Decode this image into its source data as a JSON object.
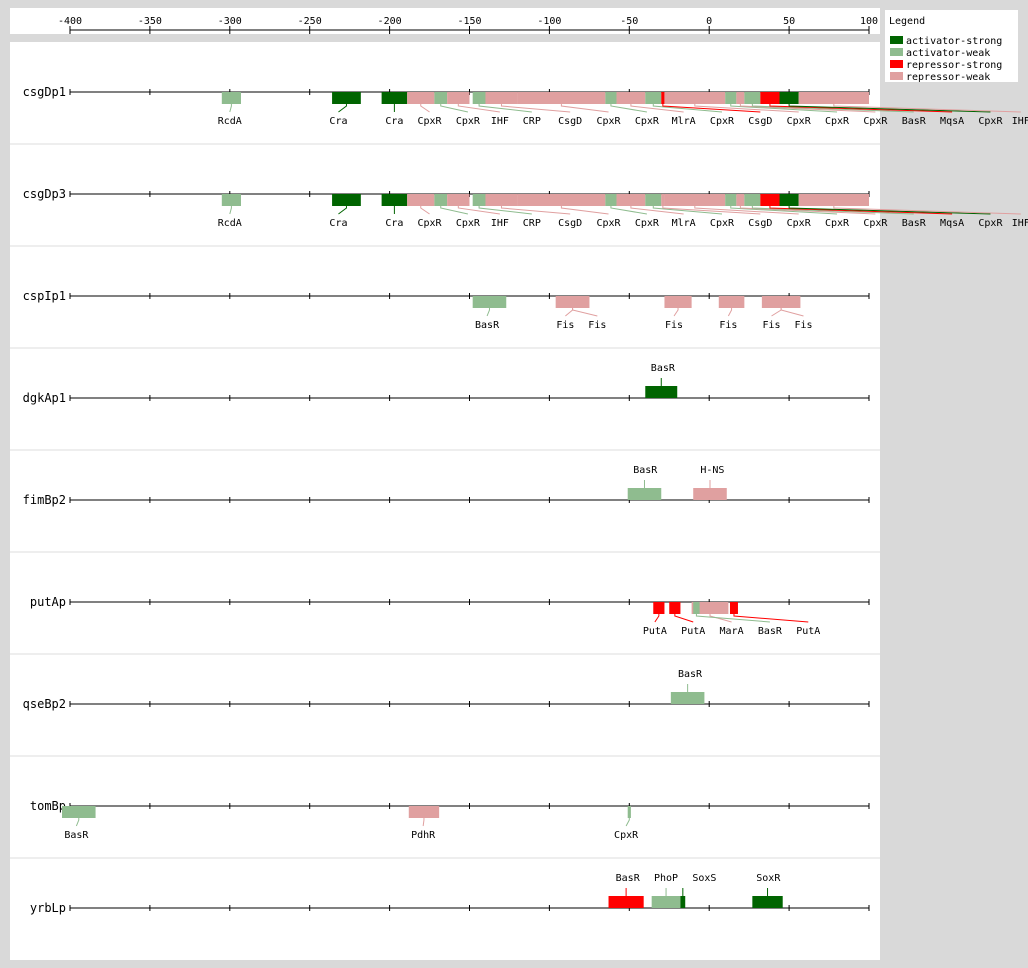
{
  "colors": {
    "activator-strong": "#006400",
    "activator-weak": "#8fbc8f",
    "repressor-strong": "#ff0000",
    "repressor-weak": "#e0a0a0",
    "background": "#d9d9d9",
    "panel": "#ffffff",
    "separator": "#dddddd"
  },
  "legend": {
    "title": "Legend",
    "items": [
      {
        "key": "activator-strong",
        "label": "activator-strong"
      },
      {
        "key": "activator-weak",
        "label": "activator-weak"
      },
      {
        "key": "repressor-strong",
        "label": "repressor-strong"
      },
      {
        "key": "repressor-weak",
        "label": "repressor-weak"
      }
    ]
  },
  "axis": {
    "min": -400,
    "max": 100,
    "ticks": [
      -400,
      -350,
      -300,
      -250,
      -200,
      -150,
      -100,
      -50,
      0,
      50,
      100
    ]
  },
  "promoters": [
    {
      "name": "csgDp1",
      "sites": [
        {
          "tf": "RcdA",
          "start": -305,
          "end": -293,
          "type": "activator-weak",
          "label_pos": "below",
          "label_x": -300
        },
        {
          "tf": "Cra",
          "start": -236,
          "end": -218,
          "type": "activator-strong",
          "label_pos": "below",
          "label_x": -232
        },
        {
          "tf": "Cra",
          "start": -205,
          "end": -189,
          "type": "activator-strong",
          "label_pos": "below",
          "label_x": -197
        },
        {
          "tf": "CpxR",
          "start": -189,
          "end": -172,
          "type": "repressor-weak",
          "label_pos": "below",
          "label_x": -175
        },
        {
          "tf": "CpxR",
          "start": -172,
          "end": -164,
          "type": "activator-weak",
          "label_pos": "below",
          "label_x": -151
        },
        {
          "tf": "IHF",
          "start": -164,
          "end": -150,
          "type": "repressor-weak",
          "label_pos": "below",
          "label_x": -131
        },
        {
          "tf": "CRP",
          "start": -148,
          "end": -140,
          "type": "activator-weak",
          "label_pos": "below",
          "label_x": -111
        },
        {
          "tf": "CsgD",
          "start": -140,
          "end": -120,
          "type": "repressor-weak",
          "label_pos": "below",
          "label_x": -87
        },
        {
          "tf": "CpxR",
          "start": -120,
          "end": -65,
          "type": "repressor-weak",
          "label_pos": "below",
          "label_x": -63
        },
        {
          "tf": "CpxR",
          "start": -65,
          "end": -58,
          "type": "activator-weak",
          "label_pos": "below",
          "label_x": -39
        },
        {
          "tf": "MlrA",
          "start": -58,
          "end": -40,
          "type": "repressor-weak",
          "label_pos": "below",
          "label_x": -16
        },
        {
          "tf": "CpxR",
          "start": -40,
          "end": -30,
          "type": "activator-weak",
          "label_pos": "below",
          "label_x": 8
        },
        {
          "tf": "CsgD",
          "start": -30,
          "end": -28,
          "type": "repressor-strong",
          "label_pos": "below",
          "label_x": 32
        },
        {
          "tf": "CpxR",
          "start": -28,
          "end": 10,
          "type": "repressor-weak",
          "label_pos": "below",
          "label_x": 56
        },
        {
          "tf": "CpxR",
          "start": 10,
          "end": 17,
          "type": "activator-weak",
          "label_pos": "below",
          "label_x": 80
        },
        {
          "tf": "CpxR",
          "start": 17,
          "end": 22,
          "type": "repressor-weak",
          "label_pos": "below",
          "label_x": 104
        },
        {
          "tf": "BasR",
          "start": 22,
          "end": 32,
          "type": "activator-weak",
          "label_pos": "below",
          "label_x": 128
        },
        {
          "tf": "MqsA",
          "start": 32,
          "end": 44,
          "type": "repressor-strong",
          "label_pos": "below",
          "label_x": 152
        },
        {
          "tf": "CpxR",
          "start": 44,
          "end": 56,
          "type": "activator-strong",
          "label_pos": "below",
          "label_x": 176
        },
        {
          "tf": "IHF",
          "start": 56,
          "end": 100,
          "type": "repressor-weak",
          "label_pos": "below",
          "label_x": 195
        }
      ]
    },
    {
      "name": "csgDp3",
      "sites": [
        {
          "tf": "RcdA",
          "start": -305,
          "end": -293,
          "type": "activator-weak",
          "label_pos": "below",
          "label_x": -300
        },
        {
          "tf": "Cra",
          "start": -236,
          "end": -218,
          "type": "activator-strong",
          "label_pos": "below",
          "label_x": -232
        },
        {
          "tf": "Cra",
          "start": -205,
          "end": -189,
          "type": "activator-strong",
          "label_pos": "below",
          "label_x": -197
        },
        {
          "tf": "CpxR",
          "start": -189,
          "end": -172,
          "type": "repressor-weak",
          "label_pos": "below",
          "label_x": -175
        },
        {
          "tf": "CpxR",
          "start": -172,
          "end": -164,
          "type": "activator-weak",
          "label_pos": "below",
          "label_x": -151
        },
        {
          "tf": "IHF",
          "start": -164,
          "end": -150,
          "type": "repressor-weak",
          "label_pos": "below",
          "label_x": -131
        },
        {
          "tf": "CRP",
          "start": -148,
          "end": -140,
          "type": "activator-weak",
          "label_pos": "below",
          "label_x": -111
        },
        {
          "tf": "CsgD",
          "start": -140,
          "end": -120,
          "type": "repressor-weak",
          "label_pos": "below",
          "label_x": -87
        },
        {
          "tf": "CpxR",
          "start": -120,
          "end": -65,
          "type": "repressor-weak",
          "label_pos": "below",
          "label_x": -63
        },
        {
          "tf": "CpxR",
          "start": -65,
          "end": -58,
          "type": "activator-weak",
          "label_pos": "below",
          "label_x": -39
        },
        {
          "tf": "MlrA",
          "start": -58,
          "end": -40,
          "type": "repressor-weak",
          "label_pos": "below",
          "label_x": -16
        },
        {
          "tf": "CpxR",
          "start": -40,
          "end": -30,
          "type": "activator-weak",
          "label_pos": "below",
          "label_x": 8
        },
        {
          "tf": "CsgD",
          "start": -30,
          "end": -28,
          "type": "repressor-weak",
          "label_pos": "below",
          "label_x": 32
        },
        {
          "tf": "CpxR",
          "start": -28,
          "end": 10,
          "type": "repressor-weak",
          "label_pos": "below",
          "label_x": 56
        },
        {
          "tf": "CpxR",
          "start": 10,
          "end": 17,
          "type": "activator-weak",
          "label_pos": "below",
          "label_x": 80
        },
        {
          "tf": "CpxR",
          "start": 17,
          "end": 22,
          "type": "repressor-weak",
          "label_pos": "below",
          "label_x": 104
        },
        {
          "tf": "BasR",
          "start": 22,
          "end": 32,
          "type": "activator-weak",
          "label_pos": "below",
          "label_x": 128
        },
        {
          "tf": "MqsA",
          "start": 32,
          "end": 44,
          "type": "repressor-strong",
          "label_pos": "below",
          "label_x": 152
        },
        {
          "tf": "CpxR",
          "start": 44,
          "end": 56,
          "type": "activator-strong",
          "label_pos": "below",
          "label_x": 176
        },
        {
          "tf": "IHF",
          "start": 56,
          "end": 100,
          "type": "repressor-weak",
          "label_pos": "below",
          "label_x": 195
        }
      ]
    },
    {
      "name": "cspIp1",
      "sites": [
        {
          "tf": "BasR",
          "start": -148,
          "end": -127,
          "type": "activator-weak",
          "label_pos": "below",
          "label_x": -139
        },
        {
          "tf": "Fis",
          "start": -96,
          "end": -75,
          "type": "repressor-weak",
          "label_pos": "below",
          "label_x": -90
        },
        {
          "tf": "Fis",
          "start": -96,
          "end": -75,
          "type": "repressor-weak",
          "label_pos": "below",
          "label_x": -70
        },
        {
          "tf": "Fis",
          "start": -28,
          "end": -11,
          "type": "repressor-weak",
          "label_pos": "below",
          "label_x": -22
        },
        {
          "tf": "Fis",
          "start": 6,
          "end": 22,
          "type": "repressor-weak",
          "label_pos": "below",
          "label_x": 12
        },
        {
          "tf": "Fis",
          "start": 33,
          "end": 57,
          "type": "repressor-weak",
          "label_pos": "below",
          "label_x": 39
        },
        {
          "tf": "Fis",
          "start": 33,
          "end": 57,
          "type": "repressor-weak",
          "label_pos": "below",
          "label_x": 59
        }
      ]
    },
    {
      "name": "dgkAp1",
      "sites": [
        {
          "tf": "BasR",
          "start": -40,
          "end": -20,
          "type": "activator-strong",
          "label_pos": "above",
          "label_x": -29
        }
      ]
    },
    {
      "name": "fimBp2",
      "sites": [
        {
          "tf": "BasR",
          "start": -51,
          "end": -30,
          "type": "activator-weak",
          "label_pos": "above",
          "label_x": -40
        },
        {
          "tf": "H-NS",
          "start": -10,
          "end": 11,
          "type": "repressor-weak",
          "label_pos": "above",
          "label_x": 2
        }
      ]
    },
    {
      "name": "putAp",
      "sites": [
        {
          "tf": "PutA",
          "start": -35,
          "end": -28,
          "type": "repressor-strong",
          "label_pos": "below",
          "label_x": -34
        },
        {
          "tf": "PutA",
          "start": -25,
          "end": -18,
          "type": "repressor-strong",
          "label_pos": "below",
          "label_x": -10
        },
        {
          "tf": "MarA",
          "start": -11,
          "end": 12,
          "type": "repressor-weak",
          "label_pos": "below",
          "label_x": 14
        },
        {
          "tf": "BasR",
          "start": -10,
          "end": -6,
          "type": "activator-weak",
          "label_pos": "below",
          "label_x": 38
        },
        {
          "tf": "PutA",
          "start": 13,
          "end": 18,
          "type": "repressor-strong",
          "label_pos": "below",
          "label_x": 62
        }
      ]
    },
    {
      "name": "qseBp2",
      "sites": [
        {
          "tf": "BasR",
          "start": -24,
          "end": -3,
          "type": "activator-weak",
          "label_pos": "above",
          "label_x": -12
        }
      ]
    },
    {
      "name": "tomBp",
      "sites": [
        {
          "tf": "BasR",
          "start": -405,
          "end": -384,
          "type": "activator-weak",
          "label_pos": "below",
          "label_x": -396
        },
        {
          "tf": "PdhR",
          "start": -188,
          "end": -169,
          "type": "repressor-weak",
          "label_pos": "below",
          "label_x": -179
        },
        {
          "tf": "CpxR",
          "start": -51,
          "end": -49,
          "type": "activator-weak",
          "label_pos": "below",
          "label_x": -52
        }
      ]
    },
    {
      "name": "yrbLp",
      "sites": [
        {
          "tf": "BasR",
          "start": -63,
          "end": -41,
          "type": "repressor-strong",
          "label_pos": "above",
          "label_x": -51
        },
        {
          "tf": "PhoP",
          "start": -36,
          "end": -18,
          "type": "activator-weak",
          "label_pos": "above",
          "label_x": -27
        },
        {
          "tf": "SoxS",
          "start": -18,
          "end": -15,
          "type": "activator-strong",
          "label_pos": "above",
          "label_x": -3
        },
        {
          "tf": "SoxR",
          "start": 27,
          "end": 46,
          "type": "activator-strong",
          "label_pos": "above",
          "label_x": 37
        }
      ]
    }
  ]
}
